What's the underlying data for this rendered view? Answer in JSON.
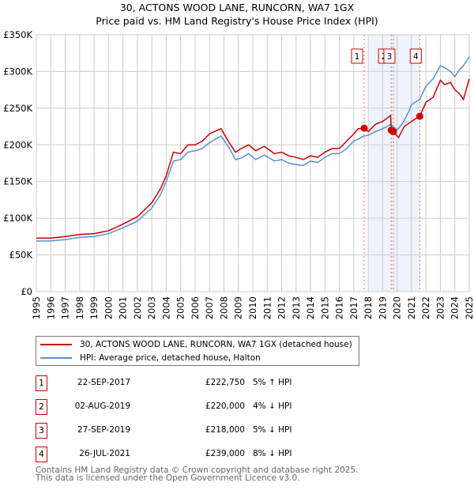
{
  "chart_data": {
    "type": "line",
    "title": "30, ACTONS WOOD LANE, RUNCORN, WA7 1GX",
    "subtitle": "Price paid vs. HM Land Registry's House Price Index (HPI)",
    "xlim": [
      1995,
      2025
    ],
    "ylim": [
      0,
      350000
    ],
    "grid": true,
    "yticks": [
      {
        "v": 0,
        "label": "£0"
      },
      {
        "v": 50000,
        "label": "£50K"
      },
      {
        "v": 100000,
        "label": "£100K"
      },
      {
        "v": 150000,
        "label": "£150K"
      },
      {
        "v": 200000,
        "label": "£200K"
      },
      {
        "v": 250000,
        "label": "£250K"
      },
      {
        "v": 300000,
        "label": "£300K"
      },
      {
        "v": 350000,
        "label": "£350K"
      }
    ],
    "xticks": [
      "1995",
      "1996",
      "1997",
      "1998",
      "1999",
      "2000",
      "2001",
      "2002",
      "2003",
      "2004",
      "2005",
      "2006",
      "2007",
      "2008",
      "2009",
      "2010",
      "2011",
      "2012",
      "2013",
      "2014",
      "2015",
      "2016",
      "2017",
      "2018",
      "2019",
      "2020",
      "2021",
      "2022",
      "2023",
      "2024",
      "2025"
    ],
    "shaded_range": [
      2018.0,
      2021.57
    ],
    "series": [
      {
        "name": "30, ACTONS WOOD LANE, RUNCORN, WA7 1GX (detached house)",
        "color": "#cc0000",
        "x": [
          1995,
          1996,
          1997,
          1998,
          1999,
          2000,
          2001,
          2002,
          2003,
          2003.6,
          2004,
          2004.5,
          2005,
          2005.5,
          2006,
          2006.5,
          2007,
          2007.8,
          2008.3,
          2008.8,
          2009.2,
          2009.7,
          2010.2,
          2010.8,
          2011.5,
          2012,
          2012.5,
          2013,
          2013.5,
          2014,
          2014.5,
          2015,
          2015.5,
          2016,
          2016.5,
          2017,
          2017.3,
          2017.72,
          2018,
          2018.5,
          2019,
          2019.55,
          2019.59,
          2019.74,
          2020.1,
          2020.5,
          2021,
          2021.57,
          2022,
          2022.5,
          2023,
          2023.3,
          2023.7,
          2024,
          2024.3,
          2024.6,
          2025
        ],
        "y": [
          73000,
          73000,
          75000,
          78000,
          79000,
          83000,
          92000,
          102000,
          121000,
          140000,
          158000,
          190000,
          188000,
          200000,
          200000,
          205000,
          215000,
          222000,
          205000,
          190000,
          195000,
          200000,
          192000,
          198000,
          188000,
          190000,
          185000,
          183000,
          180000,
          185000,
          183000,
          190000,
          195000,
          195000,
          205000,
          215000,
          222000,
          222750,
          218000,
          228000,
          232000,
          240000,
          220000,
          218000,
          210000,
          225000,
          232000,
          239000,
          258000,
          265000,
          288000,
          282000,
          285000,
          275000,
          270000,
          262000,
          290000
        ]
      },
      {
        "name": "HPI: Average price, detached house, Halton",
        "color": "#5b8fd0",
        "x": [
          1995,
          1996,
          1997,
          1998,
          1999,
          2000,
          2001,
          2002,
          2003,
          2003.6,
          2004,
          2004.5,
          2005,
          2005.5,
          2006,
          2006.5,
          2007,
          2007.8,
          2008.3,
          2008.8,
          2009.2,
          2009.7,
          2010.2,
          2010.8,
          2011.5,
          2012,
          2012.5,
          2013,
          2013.5,
          2014,
          2014.5,
          2015,
          2015.5,
          2016,
          2016.5,
          2017,
          2017.72,
          2018,
          2018.5,
          2019,
          2019.59,
          2020,
          2020.4,
          2020.8,
          2021,
          2021.57,
          2022,
          2022.5,
          2023,
          2023.3,
          2023.7,
          2024,
          2024.3,
          2024.6,
          2025
        ],
        "y": [
          69000,
          69000,
          71000,
          74000,
          75000,
          79000,
          87000,
          96000,
          114000,
          132000,
          150000,
          178000,
          180000,
          190000,
          192000,
          195000,
          203000,
          212000,
          198000,
          180000,
          182000,
          188000,
          180000,
          186000,
          178000,
          180000,
          175000,
          173000,
          172000,
          178000,
          176000,
          183000,
          188000,
          188000,
          195000,
          205000,
          212000,
          213000,
          218000,
          222000,
          228000,
          220000,
          230000,
          245000,
          255000,
          262000,
          280000,
          290000,
          308000,
          305000,
          300000,
          293000,
          302000,
          308000,
          320000
        ]
      }
    ],
    "sales": [
      {
        "label": "1",
        "x": 2017.72,
        "y": 222750
      },
      {
        "label": "2",
        "x": 2019.59,
        "y": 220000
      },
      {
        "label": "3",
        "x": 2019.74,
        "y": 218000
      },
      {
        "label": "4",
        "x": 2021.57,
        "y": 239000
      }
    ]
  },
  "legend": {
    "property": "30, ACTONS WOOD LANE, RUNCORN, WA7 1GX (detached house)",
    "hpi": "HPI: Average price, detached house, Halton"
  },
  "transactions": [
    {
      "num": "1",
      "date": "22-SEP-2017",
      "price": "£222,750",
      "hpi": "5% ↑ HPI"
    },
    {
      "num": "2",
      "date": "02-AUG-2019",
      "price": "£220,000",
      "hpi": "4% ↓ HPI"
    },
    {
      "num": "3",
      "date": "27-SEP-2019",
      "price": "£218,000",
      "hpi": "5% ↓ HPI"
    },
    {
      "num": "4",
      "date": "26-JUL-2021",
      "price": "£239,000",
      "hpi": "8% ↓ HPI"
    }
  ],
  "footer": {
    "line1": "Contains HM Land Registry data © Crown copyright and database right 2025.",
    "line2": "This data is licensed under the Open Government Licence v3.0."
  }
}
